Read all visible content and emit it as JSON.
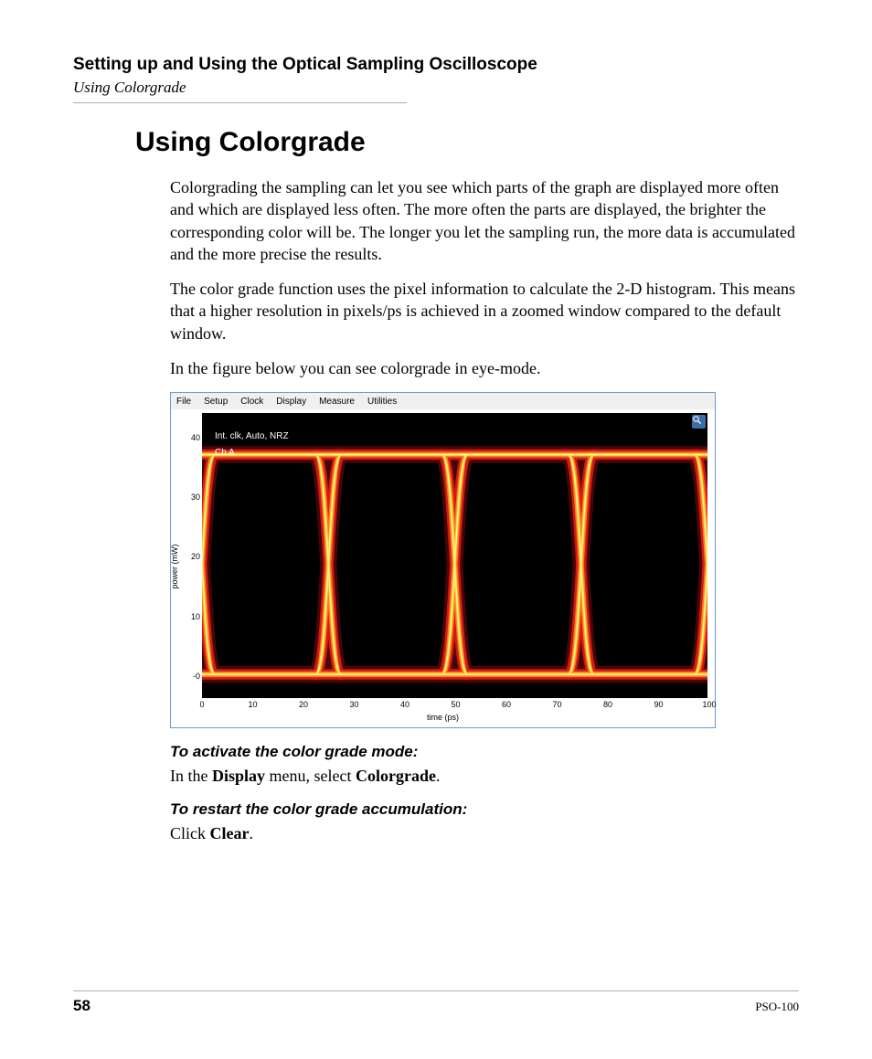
{
  "header": {
    "chapter": "Setting up and Using the Optical Sampling Oscilloscope",
    "breadcrumb": "Using Colorgrade"
  },
  "section_heading": "Using Colorgrade",
  "paragraphs": {
    "p1": "Colorgrading the sampling can let you see which parts of the graph are displayed more often and which are displayed less often. The more often the parts are displayed, the brighter the corresponding color will be. The longer you let the sampling run, the more data is accumulated and the more precise the results.",
    "p2": "The color grade function uses the pixel information to calculate the 2-D histogram. This means that a higher resolution in pixels/ps is achieved in a zoomed window compared to the default window.",
    "p3": "In the figure below you can see colorgrade in eye-mode."
  },
  "subheads": {
    "activate": "To activate the color grade mode:",
    "restart": "To restart the color grade accumulation:"
  },
  "instructions": {
    "activate_pre": "In the ",
    "activate_b1": "Display",
    "activate_mid": " menu, select ",
    "activate_b2": "Colorgrade",
    "activate_post": ".",
    "restart_pre": "Click ",
    "restart_b1": "Clear",
    "restart_post": "."
  },
  "footer": {
    "page": "58",
    "model": "PSO-100"
  },
  "screenshot": {
    "menubar": {
      "items": [
        "File",
        "Setup",
        "Clock",
        "Display",
        "Measure",
        "Utilities"
      ]
    },
    "overlay": {
      "line1": "Int. clk, Auto, NRZ",
      "line2": "Ch A"
    },
    "axes": {
      "x_label": "time (ps)",
      "y_label": "power (mW)",
      "x_ticks": [
        0,
        10,
        20,
        30,
        40,
        50,
        60,
        70,
        80,
        90,
        100
      ],
      "y_ticks": [
        0,
        10,
        20,
        30,
        40
      ],
      "x_range": [
        0,
        100
      ],
      "y_range": [
        -4,
        44
      ]
    },
    "eye": {
      "rail_high": 37,
      "rail_low": 0,
      "period": 25,
      "transition_width": 5,
      "colors": {
        "hot_core": "#fff6a0",
        "hot_mid": "#ffcc33",
        "orange": "#ff7a1a",
        "red": "#d81b1b",
        "dark_red": "#4a0808"
      },
      "plot_bg": "#000000",
      "border": "#6b9bd2"
    }
  }
}
